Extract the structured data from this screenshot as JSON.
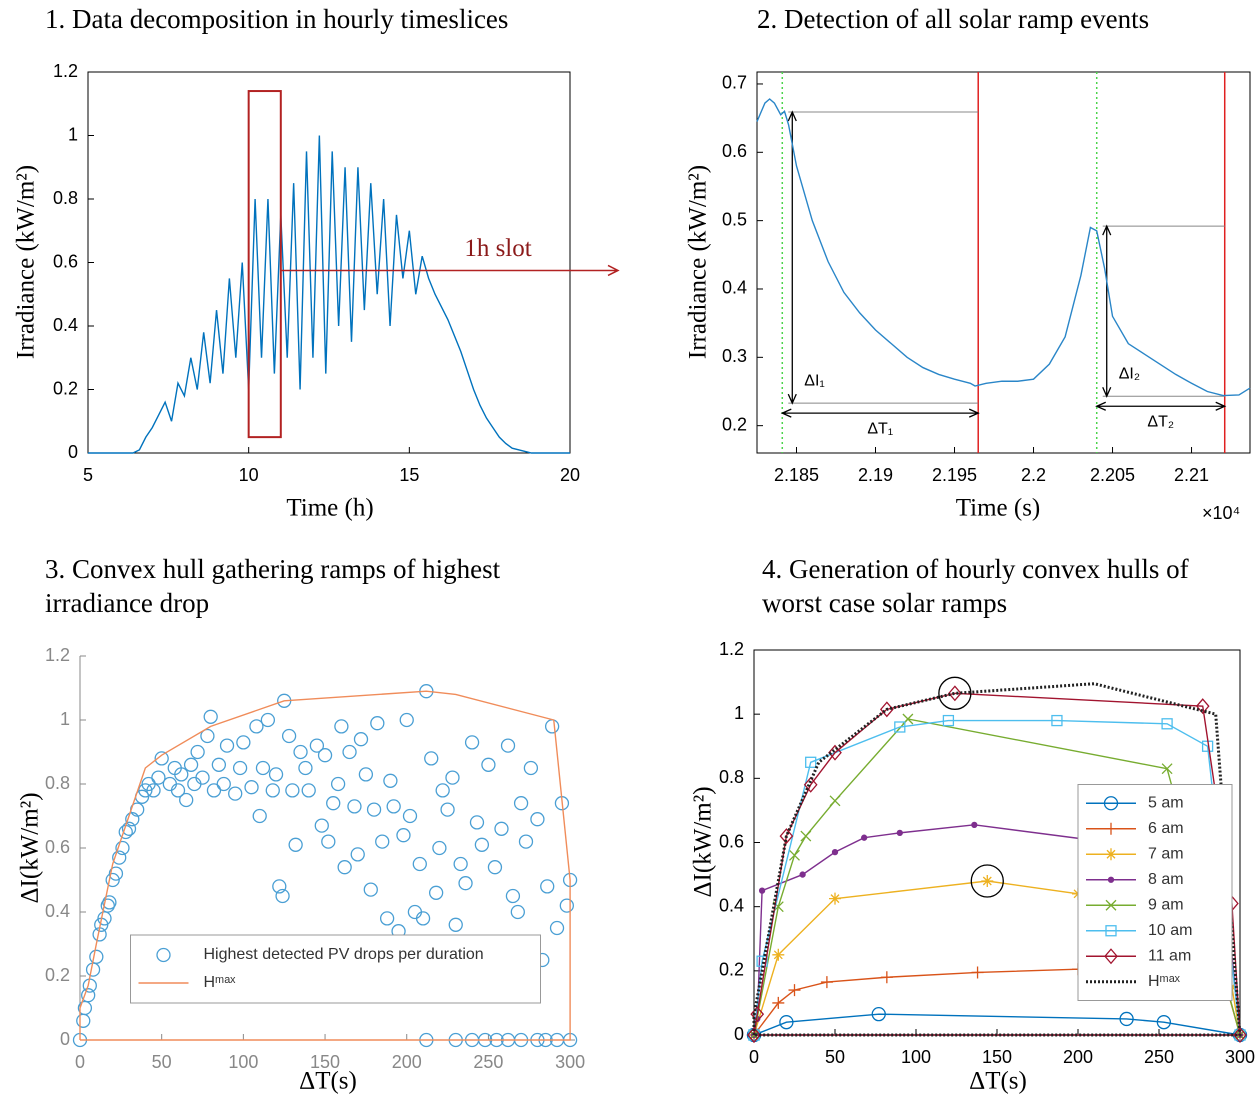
{
  "chart_data": [
    {
      "type": "line",
      "title": "1. Data decomposition in hourly timeslices",
      "xlabel": "Time (h)",
      "ylabel": "Irradiance (kW/m²)",
      "xlim": [
        5,
        20
      ],
      "ylim": [
        0,
        1.2
      ],
      "xticks": [
        5,
        10,
        15,
        20
      ],
      "yticks": [
        0,
        0.2,
        0.4,
        0.6,
        0.8,
        1,
        1.2
      ],
      "frame": "box",
      "axis_color": "#000000",
      "series": [
        {
          "color": "#0072bd",
          "x": [
            5,
            5.2,
            5.4,
            5.6,
            5.8,
            6,
            6.2,
            6.4,
            6.6,
            6.8,
            7,
            7.2,
            7.4,
            7.6,
            7.8,
            8,
            8.2,
            8.4,
            8.6,
            8.8,
            9,
            9.2,
            9.4,
            9.6,
            9.8,
            10,
            10.2,
            10.4,
            10.6,
            10.8,
            11,
            11.2,
            11.4,
            11.6,
            11.8,
            12,
            12.2,
            12.4,
            12.6,
            12.8,
            13,
            13.2,
            13.4,
            13.6,
            13.8,
            14,
            14.2,
            14.4,
            14.6,
            14.8,
            15,
            15.2,
            15.4,
            15.6,
            15.8,
            16,
            16.2,
            16.4,
            16.6,
            16.8,
            17,
            17.2,
            17.4,
            17.6,
            17.8,
            18,
            18.2,
            18.4,
            18.6,
            18.8,
            19,
            19.2,
            19.4,
            19.6,
            19.8,
            20
          ],
          "values": [
            0,
            0,
            0,
            0,
            0,
            0,
            0,
            0,
            0.01,
            0.05,
            0.08,
            0.12,
            0.16,
            0.1,
            0.22,
            0.18,
            0.3,
            0.2,
            0.38,
            0.22,
            0.45,
            0.25,
            0.55,
            0.3,
            0.6,
            0.2,
            0.8,
            0.3,
            0.8,
            0.25,
            0.75,
            0.3,
            0.85,
            0.2,
            0.95,
            0.3,
            1.0,
            0.25,
            0.95,
            0.4,
            0.9,
            0.35,
            0.9,
            0.45,
            0.85,
            0.5,
            0.8,
            0.4,
            0.75,
            0.55,
            0.7,
            0.5,
            0.62,
            0.55,
            0.5,
            0.46,
            0.42,
            0.37,
            0.32,
            0.26,
            0.2,
            0.15,
            0.11,
            0.08,
            0.05,
            0.03,
            0.015,
            0.01,
            0.005,
            0,
            0,
            0,
            0,
            0,
            0,
            0
          ]
        }
      ],
      "highlight": {
        "x": [
          10,
          11
        ],
        "y": [
          0.05,
          1.14
        ],
        "color": "#b22222"
      },
      "arrow_y": 0.575,
      "annotation": "1h slot"
    },
    {
      "type": "line",
      "title": "2. Detection of all solar ramp events",
      "xlabel": "Time (s)",
      "ylabel": "Irradiance (kW/m²)",
      "x_multiplier": "×10⁴",
      "xlim": [
        2.1825,
        2.2137
      ],
      "ylim": [
        0.16,
        0.7175
      ],
      "xticks": [
        2.185,
        2.19,
        2.195,
        2.2,
        2.205,
        2.21
      ],
      "yticks": [
        0.2,
        0.3,
        0.4,
        0.5,
        0.6,
        0.7
      ],
      "frame": "box",
      "axis_color": "#000000",
      "series": [
        {
          "color": "#2a86c8",
          "x": [
            2.1825,
            2.183,
            2.1833,
            2.1836,
            2.184,
            2.18424,
            2.1845,
            2.185,
            2.186,
            2.187,
            2.188,
            2.189,
            2.19,
            2.191,
            2.192,
            2.193,
            2.194,
            2.195,
            2.196,
            2.1963,
            2.197,
            2.198,
            2.199,
            2.2,
            2.201,
            2.202,
            2.203,
            2.2036,
            2.204,
            2.2045,
            2.205,
            2.206,
            2.207,
            2.208,
            2.209,
            2.21,
            2.211,
            2.212,
            2.213,
            2.2137
          ],
          "values": [
            0.645,
            0.672,
            0.678,
            0.672,
            0.655,
            0.66,
            0.64,
            0.58,
            0.5,
            0.44,
            0.395,
            0.365,
            0.34,
            0.32,
            0.3,
            0.285,
            0.275,
            0.268,
            0.262,
            0.258,
            0.262,
            0.265,
            0.265,
            0.268,
            0.29,
            0.33,
            0.42,
            0.49,
            0.485,
            0.43,
            0.36,
            0.32,
            0.305,
            0.29,
            0.275,
            0.262,
            0.25,
            0.244,
            0.245,
            0.255
          ]
        }
      ],
      "ramp_events": [
        {
          "start": 2.1841,
          "end": 2.1965,
          "top": 0.659,
          "bottom": 0.233,
          "di_label": "ΔI₁",
          "dt_label": "ΔT₁"
        },
        {
          "start": 2.204,
          "end": 2.2121,
          "top": 0.492,
          "bottom": 0.243,
          "di_label": "ΔI₂",
          "dt_label": "ΔT₂"
        }
      ]
    },
    {
      "type": "scatter",
      "title_lines": [
        "3. Convex hull gathering ramps of highest",
        "irradiance drop"
      ],
      "xlabel": "ΔT(s)",
      "ylabel": "ΔI(kW/m²)",
      "xlim": [
        0,
        303
      ],
      "ylim": [
        0,
        1.2
      ],
      "xticks": [
        0,
        50,
        100,
        150,
        200,
        250,
        300
      ],
      "yticks": [
        0,
        0.2,
        0.4,
        0.6,
        0.8,
        1,
        1.2
      ],
      "frame": "left-bottom",
      "axis_color": "#888888",
      "legend": "lower center",
      "series": [
        {
          "name": "Highest detected PV drops per duration",
          "color": "#4a9fd4",
          "marker": "circle",
          "line": false,
          "x": [
            2,
            3,
            5,
            6,
            8,
            10,
            12,
            13,
            15,
            17,
            18,
            20,
            22,
            24,
            26,
            28,
            30,
            32,
            35,
            38,
            40,
            42,
            45,
            48,
            50,
            55,
            58,
            60,
            62,
            65,
            68,
            70,
            72,
            75,
            78,
            80,
            82,
            85,
            88,
            90,
            95,
            98,
            100,
            105,
            108,
            110,
            112,
            115,
            118,
            120,
            122,
            124,
            125,
            128,
            130,
            132,
            135,
            138,
            140,
            145,
            148,
            150,
            152,
            155,
            158,
            160,
            162,
            165,
            168,
            170,
            172,
            175,
            178,
            180,
            182,
            185,
            188,
            190,
            192,
            195,
            198,
            200,
            202,
            205,
            208,
            210,
            212,
            215,
            218,
            220,
            222,
            225,
            228,
            230,
            233,
            236,
            240,
            243,
            246,
            250,
            254,
            258,
            262,
            265,
            268,
            270,
            273,
            276,
            280,
            283,
            286,
            289,
            292,
            295,
            298,
            300,
            212,
            230,
            240,
            248,
            255,
            262,
            270,
            280,
            285,
            292,
            300,
            0
          ],
          "values": [
            0.06,
            0.1,
            0.14,
            0.17,
            0.22,
            0.26,
            0.33,
            0.36,
            0.38,
            0.42,
            0.43,
            0.5,
            0.52,
            0.57,
            0.6,
            0.65,
            0.66,
            0.69,
            0.72,
            0.76,
            0.78,
            0.8,
            0.78,
            0.82,
            0.88,
            0.8,
            0.85,
            0.78,
            0.83,
            0.75,
            0.86,
            0.8,
            0.9,
            0.82,
            0.95,
            1.01,
            0.78,
            0.86,
            0.8,
            0.92,
            0.77,
            0.85,
            0.93,
            0.79,
            0.98,
            0.7,
            0.85,
            1.0,
            0.78,
            0.83,
            0.48,
            0.45,
            1.06,
            0.95,
            0.78,
            0.61,
            0.9,
            0.85,
            0.78,
            0.92,
            0.67,
            0.89,
            0.62,
            0.74,
            0.8,
            0.98,
            0.54,
            0.9,
            0.73,
            0.58,
            0.94,
            0.83,
            0.47,
            0.72,
            0.99,
            0.62,
            0.38,
            0.81,
            0.73,
            0.34,
            0.64,
            1.0,
            0.7,
            0.4,
            0.55,
            0.38,
            1.09,
            0.88,
            0.46,
            0.6,
            0.78,
            0.72,
            0.82,
            0.36,
            0.55,
            0.49,
            0.93,
            0.68,
            0.61,
            0.86,
            0.54,
            0.66,
            0.92,
            0.45,
            0.4,
            0.74,
            0.62,
            0.85,
            0.69,
            0.25,
            0.48,
            0.98,
            0.35,
            0.74,
            0.42,
            0.5,
            0,
            0,
            0,
            0,
            0,
            0,
            0,
            0,
            0,
            0,
            0,
            0
          ]
        },
        {
          "name": "Hᵐᵃˣ",
          "color": "#f08c5a",
          "marker": "none",
          "line": true,
          "x": [
            0,
            0,
            5,
            10,
            20,
            30,
            40,
            50,
            80,
            125,
            212,
            230,
            290,
            300,
            300,
            0
          ],
          "values": [
            0,
            0.1,
            0.17,
            0.3,
            0.55,
            0.7,
            0.85,
            0.89,
            0.98,
            1.06,
            1.09,
            1.08,
            1.0,
            0.5,
            0,
            0
          ]
        }
      ]
    },
    {
      "type": "line",
      "title_lines": [
        "4. Generation of hourly convex hulls of",
        "worst case solar ramps"
      ],
      "xlabel": "ΔT(s)",
      "ylabel": "ΔI(kW/m²)",
      "xlim": [
        0,
        300
      ],
      "ylim": [
        0,
        1.2
      ],
      "xticks": [
        0,
        50,
        100,
        150,
        200,
        250,
        300
      ],
      "yticks": [
        0,
        0.2,
        0.4,
        0.6,
        0.8,
        1,
        1.2
      ],
      "frame": "box",
      "axis_color": "#000000",
      "legend": "center right",
      "highlights": [
        [
          124,
          1.065
        ],
        [
          144,
          0.48
        ]
      ],
      "series": [
        {
          "name": "5 am",
          "color": "#0072bd",
          "marker": "circle",
          "x": [
            0,
            20,
            77,
            230,
            253,
            300,
            0
          ],
          "values": [
            0,
            0.04,
            0.065,
            0.05,
            0.04,
            0,
            0
          ]
        },
        {
          "name": "6 am",
          "color": "#d95319",
          "marker": "plus",
          "x": [
            0,
            15,
            25,
            45,
            82,
            138,
            200,
            290,
            300,
            0
          ],
          "values": [
            0,
            0.1,
            0.14,
            0.165,
            0.18,
            0.195,
            0.205,
            0.18,
            0,
            0
          ]
        },
        {
          "name": "7 am",
          "color": "#edb120",
          "marker": "star",
          "x": [
            0,
            15,
            50,
            144,
            200,
            295,
            300,
            0
          ],
          "values": [
            0,
            0.25,
            0.425,
            0.48,
            0.44,
            0.15,
            0,
            0
          ]
        },
        {
          "name": "8 am",
          "color": "#7e2f8e",
          "marker": "dot",
          "x": [
            0,
            2,
            5,
            30,
            50,
            68,
            90,
            136,
            220,
            290,
            300,
            0
          ],
          "values": [
            0,
            0.05,
            0.45,
            0.5,
            0.57,
            0.615,
            0.63,
            0.655,
            0.6,
            0.5,
            0,
            0
          ]
        },
        {
          "name": "9 am",
          "color": "#77ac30",
          "marker": "x",
          "x": [
            0,
            15,
            25,
            32,
            50,
            95,
            255,
            300,
            0
          ],
          "values": [
            0,
            0.4,
            0.56,
            0.62,
            0.73,
            0.985,
            0.83,
            0,
            0
          ]
        },
        {
          "name": "10 am",
          "color": "#4dbeee",
          "marker": "square",
          "x": [
            0,
            5,
            35,
            90,
            120,
            187,
            255,
            280,
            300,
            0
          ],
          "values": [
            0,
            0.23,
            0.85,
            0.96,
            0.98,
            0.98,
            0.97,
            0.9,
            0,
            0
          ]
        },
        {
          "name": "11 am",
          "color": "#a2142f",
          "marker": "diamond",
          "x": [
            0,
            2,
            20,
            35,
            50,
            82,
            124,
            277,
            295,
            300,
            0
          ],
          "values": [
            0,
            0.065,
            0.62,
            0.78,
            0.88,
            1.015,
            1.065,
            1.025,
            0.41,
            0,
            0
          ]
        },
        {
          "name": "Hᵐᵃˣ",
          "color": "#222222",
          "marker": "none",
          "dash": "dotted",
          "x": [
            0,
            0,
            20,
            40,
            82,
            124,
            210,
            285,
            300,
            0
          ],
          "values": [
            0,
            0.06,
            0.62,
            0.85,
            1.015,
            1.065,
            1.095,
            1.0,
            0,
            0
          ]
        }
      ]
    }
  ]
}
